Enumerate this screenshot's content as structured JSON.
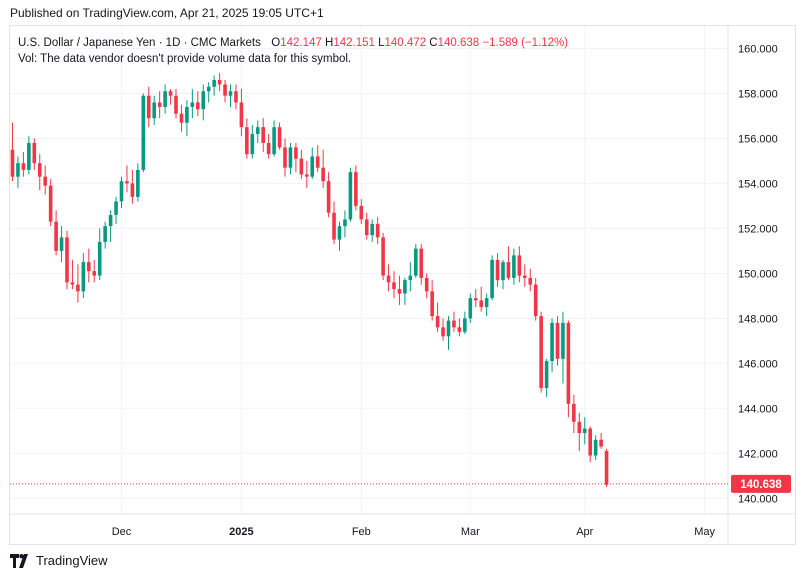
{
  "header": {
    "published": "Published on TradingView.com, Apr 21, 2025 19:05 UTC+1"
  },
  "legend": {
    "symbol": "U.S. Dollar / Japanese Yen · 1D · CMC Markets",
    "o_label": "O",
    "o_value": "142.147",
    "h_label": "H",
    "h_value": "142.151",
    "l_label": "L",
    "l_value": "140.472",
    "c_label": "C",
    "c_value": "140.638",
    "change": "−1.589 (−1.12%)",
    "vol_note": "Vol: The data vendor doesn't provide volume data for this symbol."
  },
  "footer": {
    "brand": "TradingView"
  },
  "colors": {
    "up": "#089981",
    "down": "#f23645",
    "grid": "#f0f3fa",
    "axis_text": "#131722"
  },
  "chart_data": {
    "type": "candlestick",
    "title": "U.S. Dollar / Japanese Yen",
    "ylim": [
      139.3,
      161.0
    ],
    "y_ticks": [
      "140.000",
      "142.000",
      "144.000",
      "146.000",
      "148.000",
      "150.000",
      "152.000",
      "154.000",
      "156.000",
      "158.000",
      "160.000"
    ],
    "x_ticks": [
      {
        "label": "Dec",
        "index": 20
      },
      {
        "label": "2025",
        "index": 42
      },
      {
        "label": "Feb",
        "index": 64
      },
      {
        "label": "Mar",
        "index": 84
      },
      {
        "label": "Apr",
        "index": 105
      },
      {
        "label": "May",
        "index": 127
      }
    ],
    "last_price": "140.638",
    "last_value": 140.638,
    "candles": [
      [
        155.5,
        156.7,
        154.1,
        154.3
      ],
      [
        154.3,
        155.2,
        153.8,
        154.9
      ],
      [
        154.9,
        155.4,
        154.3,
        154.6
      ],
      [
        154.6,
        156.1,
        154.4,
        155.8
      ],
      [
        155.8,
        156.0,
        154.6,
        154.9
      ],
      [
        154.9,
        155.3,
        153.7,
        154.3
      ],
      [
        154.3,
        154.8,
        153.5,
        153.9
      ],
      [
        153.9,
        154.2,
        152.1,
        152.3
      ],
      [
        152.3,
        152.8,
        150.8,
        151.0
      ],
      [
        151.0,
        152.1,
        150.5,
        151.6
      ],
      [
        151.6,
        151.9,
        149.3,
        149.6
      ],
      [
        149.6,
        150.6,
        149.3,
        149.5
      ],
      [
        149.5,
        150.4,
        148.7,
        149.2
      ],
      [
        149.2,
        150.9,
        148.9,
        150.5
      ],
      [
        150.5,
        151.1,
        149.6,
        150.1
      ],
      [
        150.1,
        150.6,
        149.6,
        149.9
      ],
      [
        149.9,
        152.0,
        149.7,
        151.4
      ],
      [
        151.4,
        152.3,
        151.1,
        152.1
      ],
      [
        152.1,
        152.8,
        151.4,
        152.6
      ],
      [
        152.6,
        153.4,
        152.2,
        153.2
      ],
      [
        153.2,
        154.3,
        152.9,
        154.1
      ],
      [
        154.1,
        154.8,
        153.6,
        154.0
      ],
      [
        154.0,
        154.6,
        153.1,
        153.4
      ],
      [
        153.4,
        154.9,
        153.2,
        154.6
      ],
      [
        154.6,
        158.0,
        154.5,
        157.9
      ],
      [
        157.9,
        158.3,
        156.5,
        156.9
      ],
      [
        156.9,
        157.9,
        156.6,
        157.6
      ],
      [
        157.6,
        158.1,
        156.9,
        157.4
      ],
      [
        157.4,
        158.4,
        157.1,
        158.1
      ],
      [
        158.1,
        158.2,
        157.5,
        157.9
      ],
      [
        157.9,
        158.2,
        156.9,
        157.1
      ],
      [
        157.1,
        157.5,
        156.3,
        156.7
      ],
      [
        156.7,
        157.7,
        156.1,
        157.4
      ],
      [
        157.4,
        158.2,
        156.9,
        157.6
      ],
      [
        157.6,
        158.1,
        157.0,
        157.3
      ],
      [
        157.3,
        158.4,
        156.8,
        158.1
      ],
      [
        158.1,
        158.5,
        157.6,
        158.3
      ],
      [
        158.3,
        158.8,
        157.9,
        158.6
      ],
      [
        158.6,
        158.9,
        158.1,
        158.4
      ],
      [
        158.4,
        158.6,
        157.6,
        157.9
      ],
      [
        157.9,
        158.4,
        157.4,
        158.1
      ],
      [
        158.1,
        158.4,
        157.3,
        157.6
      ],
      [
        157.6,
        158.2,
        156.1,
        156.5
      ],
      [
        156.5,
        156.9,
        155.1,
        155.3
      ],
      [
        155.3,
        156.6,
        155.1,
        156.2
      ],
      [
        156.2,
        156.8,
        155.8,
        156.5
      ],
      [
        156.5,
        156.9,
        155.4,
        155.8
      ],
      [
        155.8,
        156.2,
        155.1,
        155.3
      ],
      [
        155.3,
        156.8,
        155.2,
        156.5
      ],
      [
        156.5,
        156.7,
        155.5,
        155.6
      ],
      [
        155.6,
        156.0,
        154.3,
        154.7
      ],
      [
        154.7,
        155.8,
        154.4,
        155.6
      ],
      [
        155.6,
        155.8,
        154.5,
        155.1
      ],
      [
        155.1,
        155.5,
        154.2,
        154.4
      ],
      [
        154.4,
        155.0,
        153.8,
        154.3
      ],
      [
        154.3,
        155.6,
        154.2,
        155.2
      ],
      [
        155.2,
        155.7,
        154.5,
        154.7
      ],
      [
        154.7,
        155.5,
        153.8,
        154.1
      ],
      [
        154.1,
        154.5,
        152.5,
        152.7
      ],
      [
        152.7,
        153.2,
        151.3,
        151.5
      ],
      [
        151.5,
        152.3,
        151.0,
        152.1
      ],
      [
        152.1,
        152.8,
        151.6,
        152.4
      ],
      [
        152.4,
        154.7,
        152.3,
        154.5
      ],
      [
        154.5,
        154.8,
        152.8,
        153.0
      ],
      [
        153.0,
        153.3,
        152.2,
        152.4
      ],
      [
        152.4,
        152.7,
        151.5,
        151.7
      ],
      [
        151.7,
        152.4,
        151.4,
        152.2
      ],
      [
        152.2,
        152.5,
        151.3,
        151.6
      ],
      [
        151.6,
        151.8,
        149.7,
        149.9
      ],
      [
        149.9,
        150.4,
        149.2,
        149.6
      ],
      [
        149.6,
        150.1,
        148.9,
        149.3
      ],
      [
        149.3,
        149.9,
        148.6,
        149.1
      ],
      [
        149.1,
        149.8,
        148.6,
        149.7
      ],
      [
        149.7,
        150.5,
        149.2,
        149.9
      ],
      [
        149.9,
        151.3,
        149.8,
        151.1
      ],
      [
        151.1,
        151.3,
        149.5,
        149.8
      ],
      [
        149.8,
        150.0,
        148.9,
        149.2
      ],
      [
        149.2,
        149.7,
        147.9,
        148.1
      ],
      [
        148.1,
        148.7,
        147.4,
        147.6
      ],
      [
        147.6,
        148.0,
        147.0,
        147.2
      ],
      [
        147.2,
        148.1,
        146.6,
        147.9
      ],
      [
        147.9,
        148.3,
        147.4,
        147.6
      ],
      [
        147.6,
        148.0,
        147.2,
        147.4
      ],
      [
        147.4,
        148.3,
        147.3,
        148.0
      ],
      [
        148.0,
        149.1,
        147.8,
        148.9
      ],
      [
        148.9,
        149.3,
        148.5,
        148.8
      ],
      [
        148.8,
        149.4,
        148.3,
        148.5
      ],
      [
        148.5,
        149.1,
        148.1,
        148.9
      ],
      [
        148.9,
        150.8,
        148.8,
        150.6
      ],
      [
        150.6,
        150.9,
        149.4,
        149.7
      ],
      [
        149.7,
        150.6,
        149.3,
        150.5
      ],
      [
        150.5,
        151.2,
        149.7,
        149.8
      ],
      [
        149.8,
        151.1,
        149.5,
        150.8
      ],
      [
        150.8,
        151.2,
        149.6,
        149.9
      ],
      [
        149.9,
        150.4,
        149.4,
        149.8
      ],
      [
        149.8,
        150.2,
        149.2,
        149.5
      ],
      [
        149.5,
        149.8,
        147.9,
        148.1
      ],
      [
        148.1,
        148.3,
        144.7,
        144.9
      ],
      [
        144.9,
        146.2,
        144.5,
        146.1
      ],
      [
        146.1,
        148.0,
        145.6,
        147.8
      ],
      [
        147.8,
        148.1,
        145.9,
        146.2
      ],
      [
        146.2,
        148.3,
        145.1,
        147.8
      ],
      [
        147.8,
        147.9,
        143.6,
        144.2
      ],
      [
        144.2,
        144.6,
        142.9,
        143.4
      ],
      [
        143.4,
        143.8,
        142.1,
        142.9
      ],
      [
        142.9,
        143.6,
        142.4,
        143.1
      ],
      [
        143.1,
        143.2,
        141.6,
        141.9
      ],
      [
        141.9,
        142.8,
        141.7,
        142.6
      ],
      [
        142.6,
        142.9,
        142.2,
        142.3
      ],
      [
        142.1,
        142.2,
        140.5,
        140.6
      ]
    ]
  }
}
